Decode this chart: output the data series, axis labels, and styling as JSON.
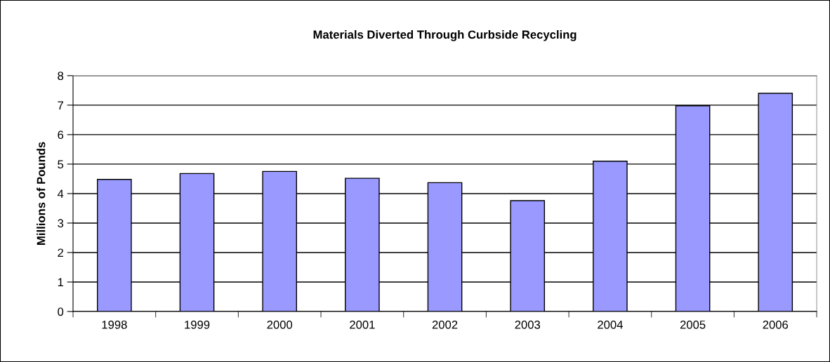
{
  "chart_data": {
    "type": "bar",
    "title": "Materials Diverted Through Curbside Recycling",
    "ylabel": "Millions of Pounds",
    "categories": [
      "1998",
      "1999",
      "2000",
      "2001",
      "2002",
      "2003",
      "2004",
      "2005",
      "2006"
    ],
    "values": [
      4.48,
      4.68,
      4.75,
      4.52,
      4.37,
      3.76,
      5.1,
      6.98,
      7.4
    ],
    "color": "#9999ff",
    "ylim": [
      0,
      8
    ],
    "yticks": [
      0,
      1,
      2,
      3,
      4,
      5,
      6,
      7,
      8
    ],
    "grid": "y",
    "legend": false
  }
}
